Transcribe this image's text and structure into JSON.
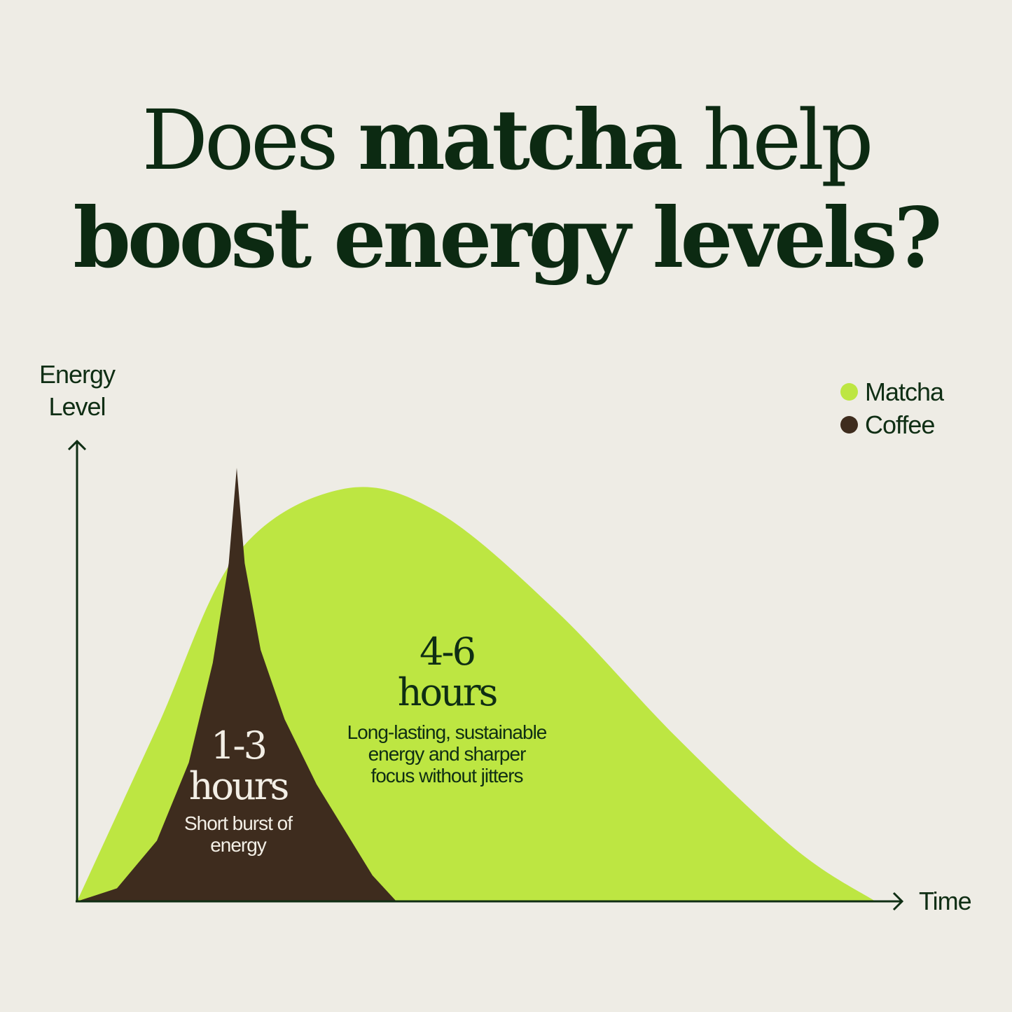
{
  "title": {
    "line1_regular": "Does",
    "line1_bold": "matcha",
    "line1_rest": "help",
    "line2": "boost energy levels?"
  },
  "colors": {
    "background": "#eeece5",
    "matcha": "#bde642",
    "coffee": "#3e2c1e",
    "text": "#0f2e14"
  },
  "chart_data": {
    "type": "area",
    "xlabel": "Time",
    "ylabel": "Energy Level",
    "grid": false,
    "legend_placement": "top-right",
    "legend": [
      "Matcha",
      "Coffee"
    ],
    "series": [
      {
        "name": "Matcha",
        "color": "#bde642",
        "points": [
          [
            0,
            0
          ],
          [
            10,
            40
          ],
          [
            20,
            80
          ],
          [
            33,
            95
          ],
          [
            45,
            90
          ],
          [
            60,
            67
          ],
          [
            75,
            38
          ],
          [
            90,
            12
          ],
          [
            100,
            0
          ]
        ]
      },
      {
        "name": "Coffee",
        "color": "#3e2c1e",
        "points": [
          [
            0,
            0
          ],
          [
            5,
            3
          ],
          [
            10,
            14
          ],
          [
            14,
            32
          ],
          [
            17,
            55
          ],
          [
            19,
            78
          ],
          [
            20,
            100
          ],
          [
            21,
            78
          ],
          [
            23,
            58
          ],
          [
            26,
            42
          ],
          [
            30,
            27
          ],
          [
            34,
            15
          ],
          [
            37,
            6
          ],
          [
            40,
            0
          ]
        ]
      }
    ],
    "annotations": {
      "matcha": {
        "duration_line1": "4-6",
        "duration_line2": "hours",
        "desc1": "Long-lasting, sustainable",
        "desc2": "energy and sharper",
        "desc3": "focus without jitters"
      },
      "coffee": {
        "duration_line1": "1-3",
        "duration_line2": "hours",
        "desc1": "Short burst of",
        "desc2": "energy"
      }
    }
  }
}
